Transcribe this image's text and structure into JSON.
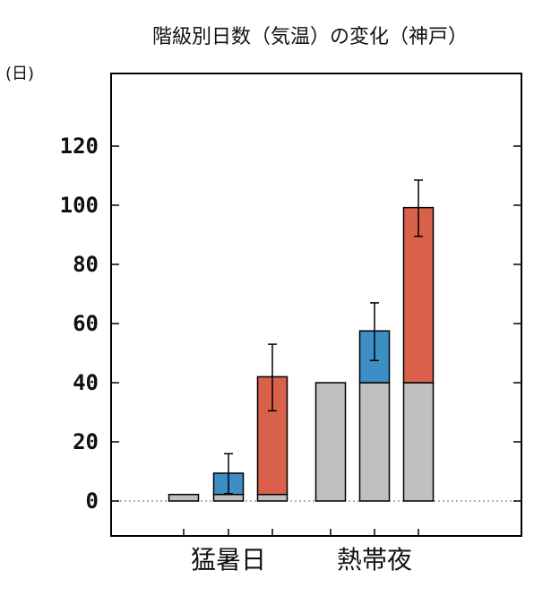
{
  "chart_data": {
    "type": "bar",
    "title": "階級別日数（気温）の変化（神戸）",
    "ylabel": "(日)",
    "ylim": [
      0,
      120
    ],
    "yticks": [
      0,
      20,
      40,
      60,
      80,
      100,
      120
    ],
    "grid": false,
    "categories": [
      "猛暑日",
      "熱帯夜"
    ],
    "bars": [
      {
        "group": 0,
        "stack": [
          {
            "value": 2.2,
            "color": "#c0c0c0"
          }
        ]
      },
      {
        "group": 0,
        "stack": [
          {
            "value": 2.2,
            "color": "#c0c0c0"
          },
          {
            "value": 7.2,
            "color": "#3b8fc4"
          }
        ],
        "error": [
          2.5,
          16.0
        ]
      },
      {
        "group": 0,
        "stack": [
          {
            "value": 2.2,
            "color": "#c0c0c0"
          },
          {
            "value": 39.8,
            "color": "#d9604a"
          }
        ],
        "error": [
          30.5,
          53.0
        ]
      },
      {
        "group": 1,
        "stack": [
          {
            "value": 40.0,
            "color": "#c0c0c0"
          }
        ]
      },
      {
        "group": 1,
        "stack": [
          {
            "value": 40.0,
            "color": "#c0c0c0"
          },
          {
            "value": 17.5,
            "color": "#3b8fc4"
          }
        ],
        "error": [
          47.5,
          67.0
        ]
      },
      {
        "group": 1,
        "stack": [
          {
            "value": 40.0,
            "color": "#c0c0c0"
          },
          {
            "value": 59.2,
            "color": "#d9604a"
          }
        ],
        "error": [
          89.5,
          108.5
        ]
      }
    ]
  }
}
